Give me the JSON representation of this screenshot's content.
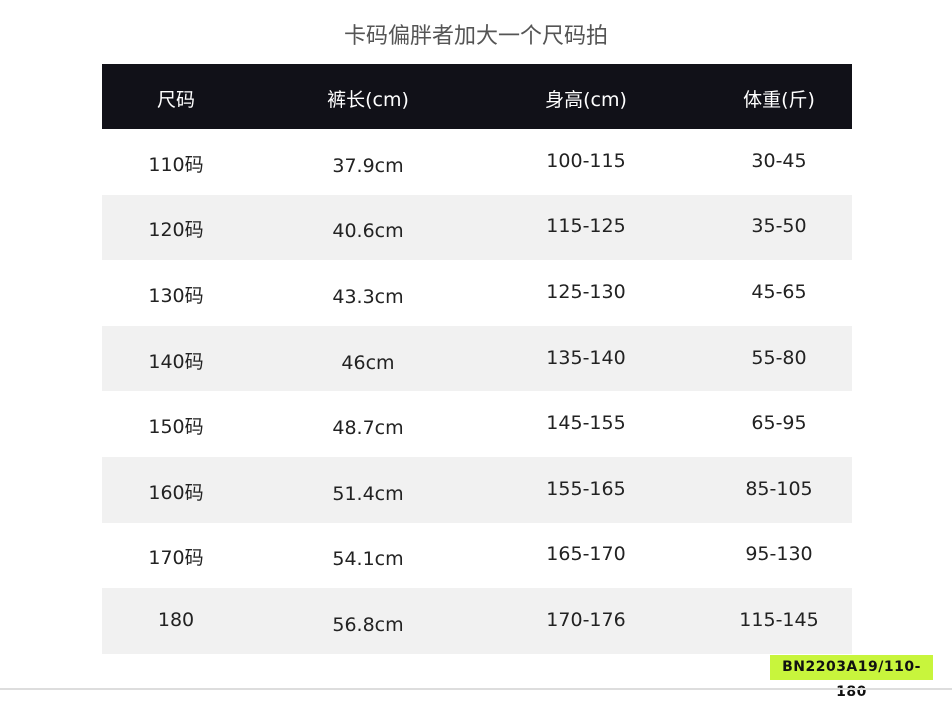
{
  "title": "卡码偏胖者加大一个尺码拍",
  "headers": [
    "尺码",
    "裤长(cm)",
    "身高(cm)",
    "体重(斤)"
  ],
  "rows": [
    [
      "110码",
      "37.9cm",
      "100-115",
      "30-45"
    ],
    [
      "120码",
      "40.6cm",
      "115-125",
      "35-50"
    ],
    [
      "130码",
      "43.3cm",
      "125-130",
      "45-65"
    ],
    [
      "140码",
      "46cm",
      "135-140",
      "55-80"
    ],
    [
      "150码",
      "48.7cm",
      "145-155",
      "65-95"
    ],
    [
      "160码",
      "51.4cm",
      "155-165",
      "85-105"
    ],
    [
      "170码",
      "54.1cm",
      "165-170",
      "95-130"
    ],
    [
      "180",
      "56.8cm",
      "170-176",
      "115-145"
    ]
  ],
  "badge": "BN2203A19/110-180",
  "colors": {
    "header_bg": "#111118",
    "alt_row": "#f1f1f1",
    "badge_bg": "#c8f53c"
  }
}
